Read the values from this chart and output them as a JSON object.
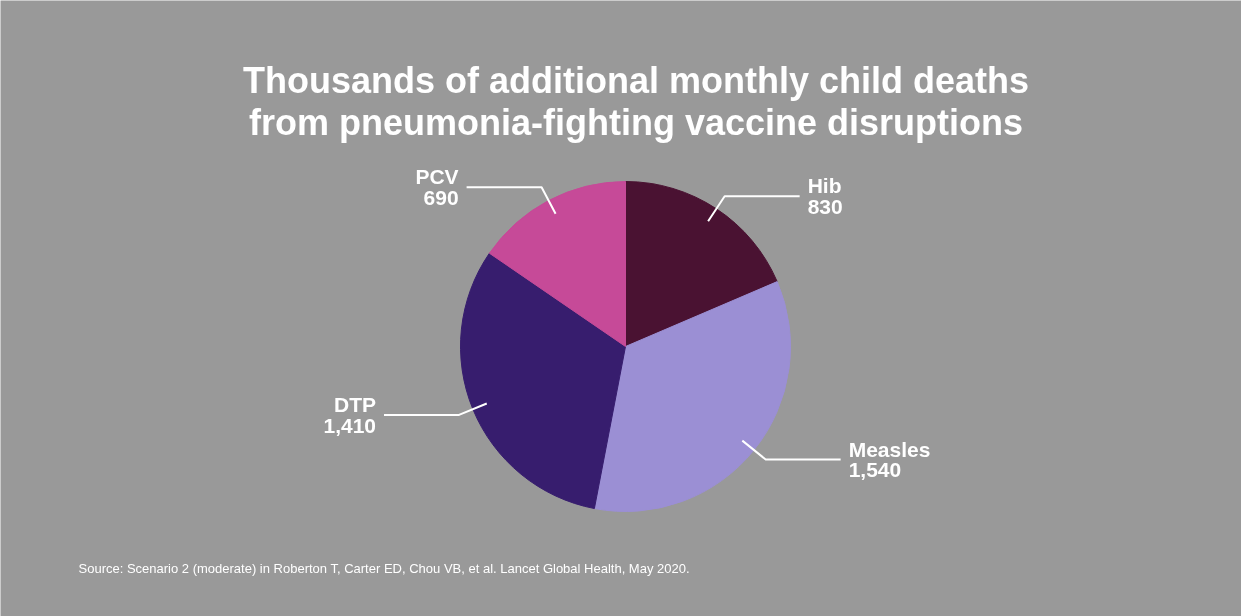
{
  "chart_data": {
    "type": "pie",
    "title": "Thousands of additional monthly child deaths\nfrom pneumonia-fighting vaccine disruptions",
    "categories": [
      "Hib",
      "Measles",
      "DTP",
      "PCV"
    ],
    "values": [
      830,
      1540,
      1410,
      690
    ],
    "colors": [
      "#4a1232",
      "#9b8fd4",
      "#371d6e",
      "#c64a98"
    ],
    "value_labels": [
      "830",
      "1,540",
      "1,410",
      "690"
    ],
    "annotations": [
      "Source: Scenario 2 (moderate) in Roberton T, Carter ED, Chou VB, et al. Lancet Global Health, May 2020."
    ]
  }
}
